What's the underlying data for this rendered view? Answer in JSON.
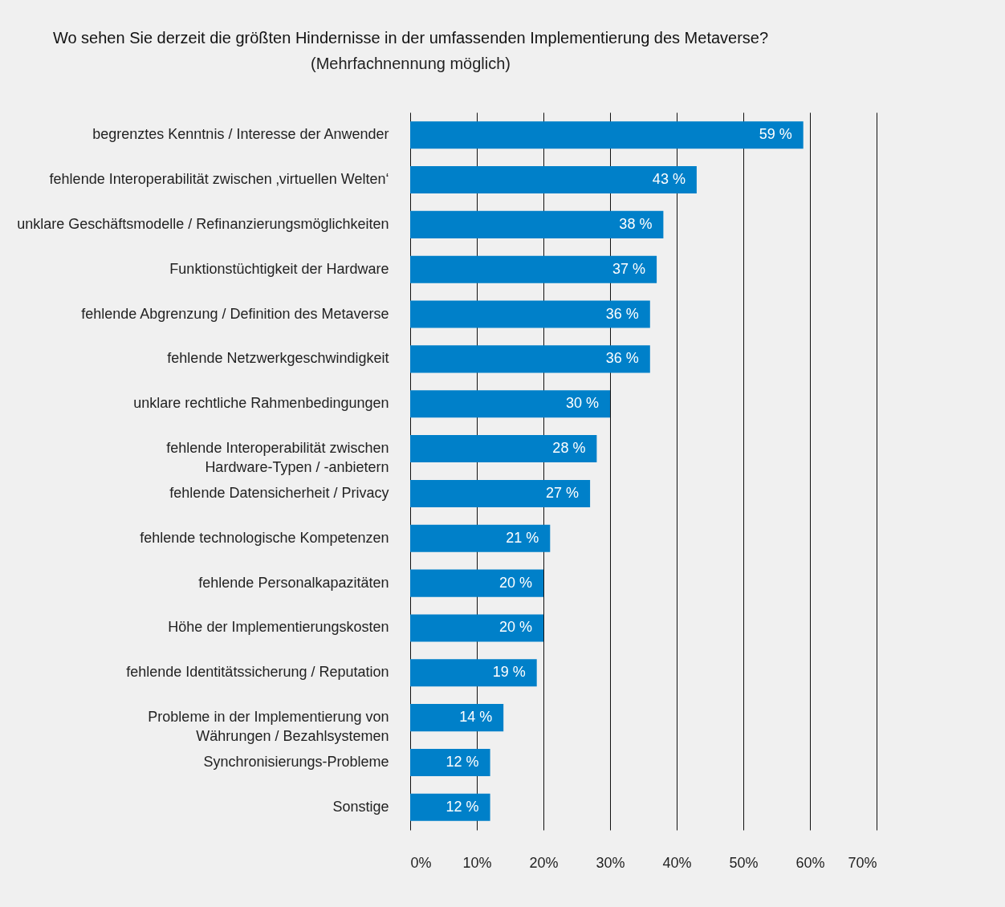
{
  "chart_data": {
    "type": "bar",
    "orientation": "horizontal",
    "title": "Wo sehen Sie derzeit die größten Hindernisse in der umfassenden Implementierung des Metaverse?",
    "subtitle": "(Mehrfachnennung möglich)",
    "categories": [
      "begrenztes Kenntnis / Interesse der Anwender",
      "fehlende Interoperabilität zwischen ‚virtuellen Welten‘",
      "unklare Geschäftsmodelle / Refinanzierungsmöglichkeiten",
      "Funktionstüchtigkeit der Hardware",
      "fehlende Abgrenzung / Definition des Metaverse",
      "fehlende Netzwerkgeschwindigkeit",
      "unklare rechtliche Rahmenbedingungen",
      "fehlende Interoperabilität zwischen\nHardware-Typen / -anbietern",
      "fehlende Datensicherheit / Privacy",
      "fehlende technologische Kompetenzen",
      "fehlende Personalkapazitäten",
      "Höhe der Implementierungskosten",
      "fehlende Identitätssicherung / Reputation",
      "Probleme in der Implementierung von\nWährungen / Bezahlsystemen",
      "Synchronisierungs-Probleme",
      "Sonstige"
    ],
    "values": [
      59,
      43,
      38,
      37,
      36,
      36,
      30,
      28,
      27,
      21,
      20,
      20,
      19,
      14,
      12,
      12
    ],
    "value_labels": [
      "59 %",
      "43 %",
      "38 %",
      "37 %",
      "36 %",
      "36 %",
      "30 %",
      "28 %",
      "27 %",
      "21 %",
      "20 %",
      "20 %",
      "19 %",
      "14 %",
      "12 %",
      "12 %"
    ],
    "color": "#0080c9",
    "xlim": [
      0,
      70
    ],
    "xticks": [
      {
        "value": 0,
        "label": "0%"
      },
      {
        "value": 10,
        "label": "10%"
      },
      {
        "value": 20,
        "label": "20%"
      },
      {
        "value": 30,
        "label": "30%"
      },
      {
        "value": 40,
        "label": "40%"
      },
      {
        "value": 50,
        "label": "50%"
      },
      {
        "value": 60,
        "label": "60%"
      },
      {
        "value": 70,
        "label": "70%"
      }
    ],
    "grid": "x"
  }
}
